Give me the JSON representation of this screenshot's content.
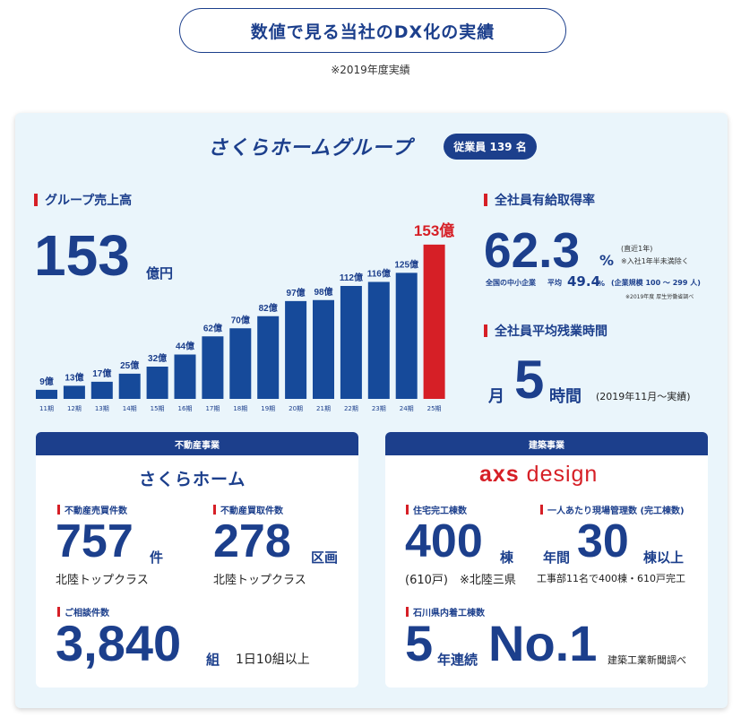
{
  "header": {
    "title": "数値で見る当社のDX化の実績",
    "note": "※2019年度実績"
  },
  "group": {
    "logo": "さくらホームグループ",
    "employees": "従業員 139 名"
  },
  "sales": {
    "heading": "グループ売上高",
    "value": "153",
    "unit": "億円"
  },
  "chart_data": {
    "type": "bar",
    "title": "グループ売上高",
    "categories": [
      "11期",
      "12期",
      "13期",
      "14期",
      "15期",
      "16期",
      "17期",
      "18期",
      "19期",
      "20期",
      "21期",
      "22期",
      "23期",
      "24期",
      "25期"
    ],
    "values": [
      9,
      13,
      17,
      25,
      32,
      44,
      62,
      70,
      82,
      97,
      98,
      112,
      116,
      125,
      153
    ],
    "labels": [
      "9億",
      "13億",
      "17億",
      "25億",
      "32億",
      "44億",
      "62億",
      "70億",
      "82億",
      "97億",
      "98億",
      "112億",
      "116億",
      "125億",
      "153億"
    ],
    "highlight_index": 14,
    "ylim": [
      0,
      160
    ],
    "colors": {
      "bar": "#164a9a",
      "highlight": "#d61f26"
    }
  },
  "paid_leave": {
    "heading": "全社員有給取得率",
    "value": "62.3",
    "unit": "%",
    "note1": "(直近1年)",
    "note2": "※入社1年半未満除く",
    "sme_label": "全国の中小企業",
    "sme_avg_label": "平均",
    "sme_value": "49.4",
    "sme_unit": "%",
    "sme_scale": "(企業規模 100 ～ 299 人)",
    "source": "※2019年度 厚生労働省調べ"
  },
  "overtime": {
    "heading": "全社員平均残業時間",
    "prefix": "月",
    "value": "5",
    "unit": "時間",
    "note": "(2019年11月～実績)"
  },
  "real_estate": {
    "header": "不動産事業",
    "logo": "さくらホーム",
    "sales": {
      "label": "不動産売買件数",
      "value": "757",
      "unit": "件",
      "sub": "北陸トップクラス"
    },
    "purchase": {
      "label": "不動産買取件数",
      "value": "278",
      "unit": "区画",
      "sub": "北陸トップクラス"
    },
    "consult": {
      "label": "ご相談件数",
      "value": "3,840",
      "unit": "組",
      "sub": "1日10組以上"
    }
  },
  "architecture": {
    "header": "建築事業",
    "logo_bold": "axs",
    "logo_light": " design",
    "completed": {
      "label": "住宅完工棟数",
      "value": "400",
      "unit": "棟",
      "sub": "(610戸)　※北陸三県"
    },
    "per_person": {
      "label": "一人あたり現場管理数 (完工棟数)",
      "prefix": "年間",
      "value": "30",
      "unit": "棟以上",
      "sub": "工事部11名で400棟・610戸完工"
    },
    "ishikawa": {
      "label": "石川県内着工棟数",
      "years": "5",
      "years_unit": "年連続",
      "rank": "No.1",
      "source": "建築工業新聞調べ"
    }
  }
}
